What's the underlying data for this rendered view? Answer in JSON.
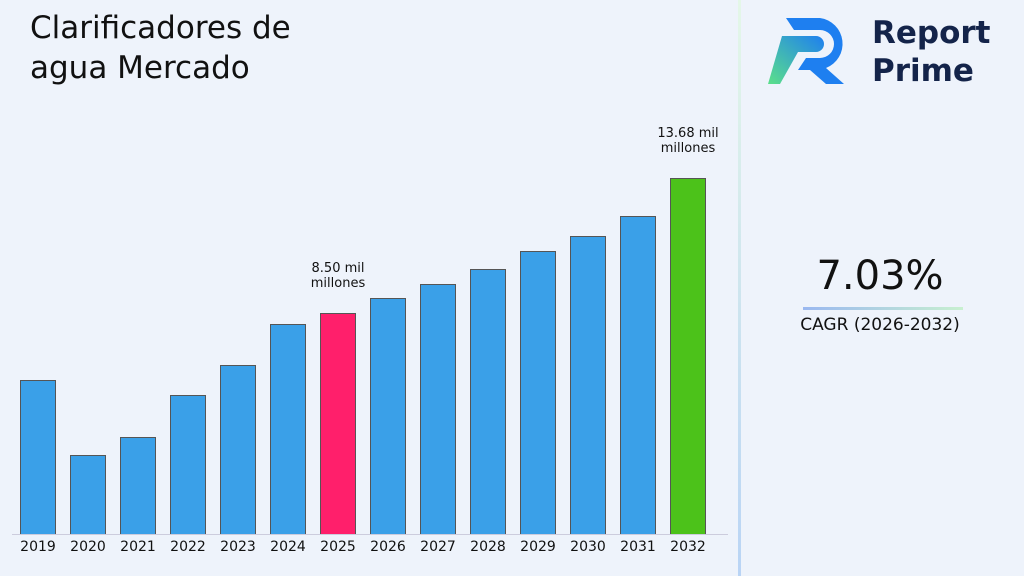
{
  "chart_data": {
    "type": "bar",
    "title": "Clarificadores de agua Mercado",
    "categories": [
      "2019",
      "2020",
      "2021",
      "2022",
      "2023",
      "2024",
      "2025",
      "2026",
      "2027",
      "2028",
      "2029",
      "2030",
      "2031",
      "2032"
    ],
    "values": [
      5.9,
      3.03,
      3.72,
      5.33,
      6.48,
      8.08,
      8.5,
      9.08,
      9.62,
      10.19,
      10.88,
      11.46,
      12.22,
      13.68
    ],
    "value_labels": [
      null,
      null,
      null,
      null,
      null,
      null,
      "8.50 mil millones",
      null,
      null,
      null,
      null,
      null,
      null,
      "13.68 mil millones"
    ],
    "colors": [
      "#3aa0e8",
      "#3aa0e8",
      "#3aa0e8",
      "#3aa0e8",
      "#3aa0e8",
      "#3aa0e8",
      "#ff1f6b",
      "#3aa0e8",
      "#3aa0e8",
      "#3aa0e8",
      "#3aa0e8",
      "#3aa0e8",
      "#3aa0e8",
      "#4cc21a"
    ]
  },
  "brand": {
    "line1": "Report",
    "line2": "Prime"
  },
  "cagr": {
    "value": "7.03%",
    "label": "CAGR (2026-2032)"
  }
}
